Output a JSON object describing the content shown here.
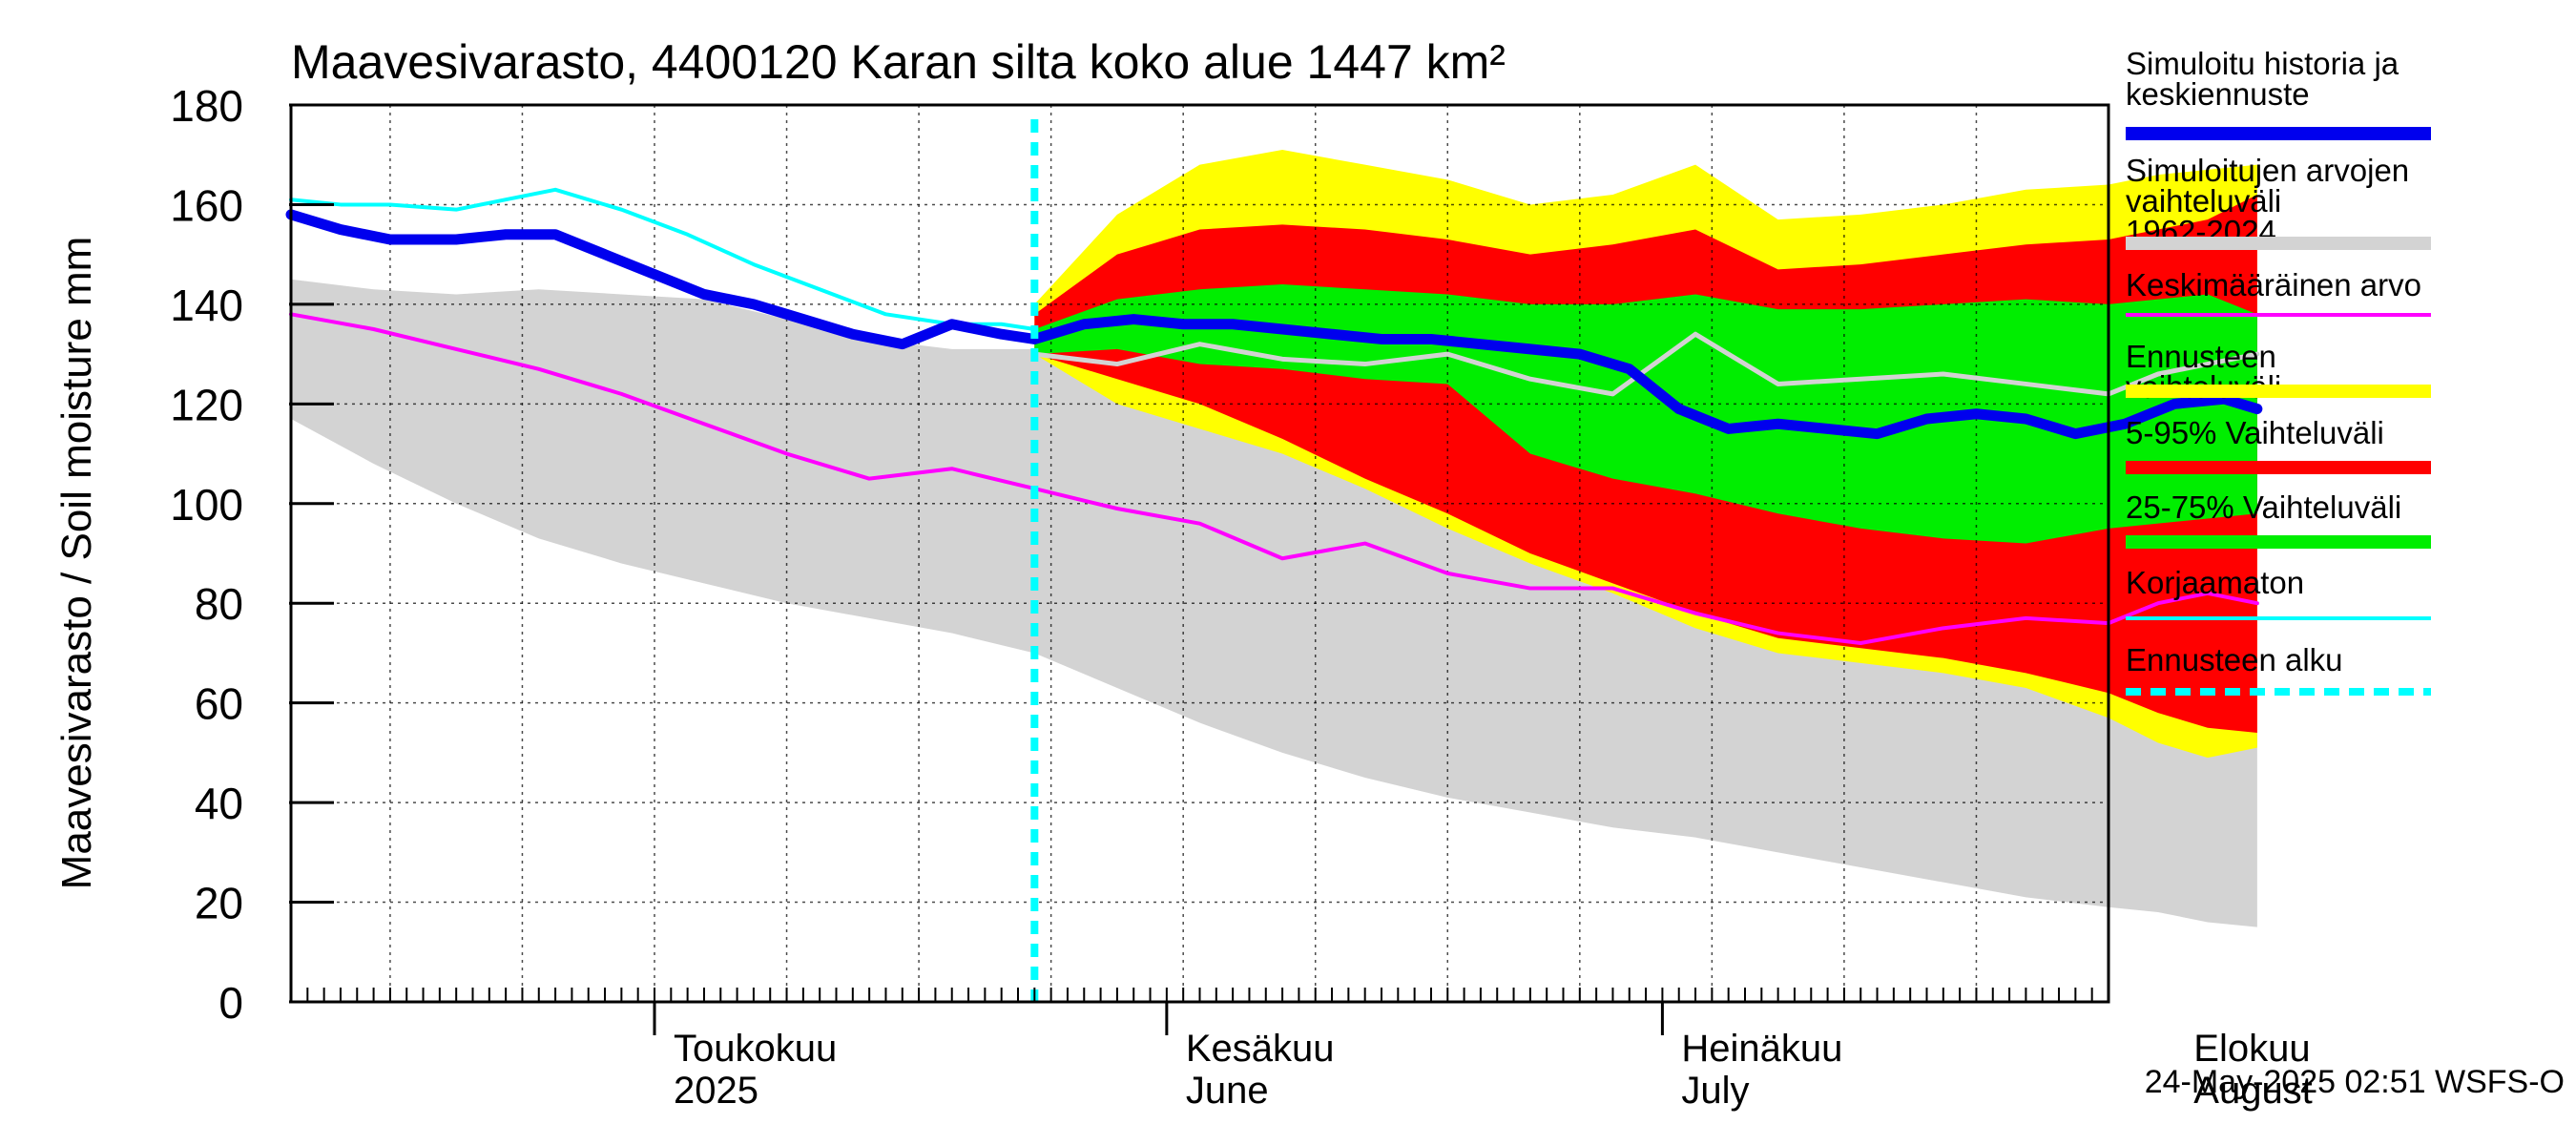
{
  "chart_data": {
    "type": "area",
    "title": "Maavesivarasto, 4400120 Karan silta koko alue 1447 km²",
    "ylabel": "Maavesivarasto / Soil moisture   mm",
    "ylim": [
      0,
      180
    ],
    "y_ticks": [
      0,
      20,
      40,
      60,
      80,
      100,
      120,
      140,
      160,
      180
    ],
    "x_range_days": [
      0,
      110
    ],
    "x_start_date": "2025-04-09",
    "month_labels": [
      {
        "line1": "Toukokuu",
        "line2": "2025",
        "day": 22
      },
      {
        "line1": "Kesäkuu",
        "line2": "June",
        "day": 53
      },
      {
        "line1": "Heinäkuu",
        "line2": "July",
        "day": 83
      },
      {
        "line1": "Elokuu",
        "line2": "August",
        "day": 114
      }
    ],
    "month_boundaries": [
      22,
      53,
      83,
      114
    ],
    "forecast_start_day": 45,
    "timestamp": "24-May-2025 02:51 WSFS-O",
    "legend": [
      {
        "label": "Simuloitu historia ja keskiennuste",
        "color": "#0000ee",
        "style": "thick"
      },
      {
        "label": "Simuloitujen arvojen vaihteluväli 1962-2024",
        "color": "#d3d3d3",
        "style": "thick"
      },
      {
        "label": "Keskimääräinen arvo",
        "color": "#ff00ff",
        "style": "thin"
      },
      {
        "label": "Ennusteen vaihteluväli",
        "color": "#ffff00",
        "style": "thick"
      },
      {
        "label": "5-95% Vaihteluväli",
        "color": "#ff0000",
        "style": "thick"
      },
      {
        "label": "25-75% Vaihteluväli",
        "color": "#00ee00",
        "style": "thick"
      },
      {
        "label": "Korjaamaton",
        "color": "#00ffff",
        "style": "thin"
      },
      {
        "label": "Ennusteen alku",
        "color": "#00ffff",
        "style": "dashed"
      }
    ],
    "series": {
      "hist_range_upper": {
        "x": [
          0,
          5,
          10,
          15,
          20,
          25,
          30,
          35,
          40,
          45,
          50,
          55,
          60,
          65,
          70,
          75,
          80,
          85,
          90,
          95,
          100,
          105,
          110,
          113,
          116,
          119
        ],
        "y": [
          145,
          143,
          142,
          143,
          142,
          141,
          137,
          133,
          131,
          131,
          132,
          128,
          125,
          130,
          128,
          127,
          129,
          131,
          129,
          125,
          123,
          123,
          124,
          125,
          124,
          121
        ]
      },
      "hist_range_lower": {
        "x": [
          0,
          5,
          10,
          15,
          20,
          25,
          30,
          35,
          40,
          45,
          50,
          55,
          60,
          65,
          70,
          75,
          80,
          85,
          90,
          95,
          100,
          105,
          110,
          113,
          116,
          119
        ],
        "y": [
          117,
          108,
          100,
          93,
          88,
          84,
          80,
          77,
          74,
          70,
          63,
          56,
          50,
          45,
          41,
          38,
          35,
          33,
          30,
          27,
          24,
          21,
          19,
          18,
          16,
          15
        ]
      },
      "yellow_upper": {
        "x": [
          45,
          50,
          55,
          60,
          65,
          70,
          75,
          80,
          85,
          90,
          95,
          100,
          105,
          110,
          113,
          116,
          119
        ],
        "y": [
          140,
          158,
          168,
          171,
          168,
          165,
          160,
          162,
          168,
          157,
          158,
          160,
          163,
          164,
          166,
          167,
          168
        ]
      },
      "yellow_lower": {
        "x": [
          45,
          50,
          55,
          60,
          65,
          70,
          75,
          80,
          85,
          90,
          95,
          100,
          105,
          110,
          113,
          116,
          119
        ],
        "y": [
          130,
          120,
          115,
          110,
          103,
          95,
          88,
          82,
          75,
          70,
          68,
          66,
          63,
          57,
          52,
          49,
          51
        ]
      },
      "red_upper": {
        "x": [
          45,
          50,
          55,
          60,
          65,
          70,
          75,
          80,
          85,
          90,
          95,
          100,
          105,
          110,
          113,
          116,
          119
        ],
        "y": [
          138,
          150,
          155,
          156,
          155,
          153,
          150,
          152,
          155,
          147,
          148,
          150,
          152,
          153,
          155,
          157,
          162
        ]
      },
      "red_lower": {
        "x": [
          45,
          50,
          55,
          60,
          65,
          70,
          75,
          80,
          85,
          90,
          95,
          100,
          105,
          110,
          113,
          116,
          119
        ],
        "y": [
          130,
          125,
          120,
          113,
          105,
          98,
          90,
          84,
          78,
          73,
          71,
          69,
          66,
          62,
          58,
          55,
          54
        ]
      },
      "green_upper": {
        "x": [
          45,
          50,
          55,
          60,
          65,
          70,
          75,
          80,
          85,
          90,
          95,
          100,
          105,
          110,
          113,
          116,
          119
        ],
        "y": [
          135,
          141,
          143,
          144,
          143,
          142,
          140,
          140,
          142,
          139,
          139,
          140,
          141,
          140,
          141,
          142,
          138
        ]
      },
      "green_lower": {
        "x": [
          45,
          50,
          55,
          60,
          65,
          70,
          75,
          80,
          85,
          90,
          95,
          100,
          105,
          110,
          113,
          116,
          119
        ],
        "y": [
          130,
          131,
          128,
          127,
          125,
          124,
          110,
          105,
          102,
          98,
          95,
          93,
          92,
          95,
          96,
          97,
          98
        ]
      },
      "mean": {
        "x": [
          0,
          5,
          10,
          15,
          20,
          25,
          30,
          35,
          40,
          45,
          50,
          55,
          60,
          65,
          70,
          75,
          80,
          85,
          90,
          95,
          100,
          105,
          110,
          113,
          116,
          119
        ],
        "y": [
          138,
          135,
          131,
          127,
          122,
          116,
          110,
          105,
          107,
          103,
          99,
          96,
          89,
          92,
          86,
          83,
          83,
          78,
          74,
          72,
          75,
          77,
          76,
          80,
          82,
          80
        ]
      },
      "uncorrected": {
        "x": [
          0,
          3,
          6,
          10,
          13,
          16,
          20,
          24,
          28,
          32,
          36,
          40,
          43,
          45
        ],
        "y": [
          161,
          160,
          160,
          159,
          161,
          163,
          159,
          154,
          148,
          143,
          138,
          136,
          136,
          135
        ]
      },
      "gray_line": {
        "x": [
          45,
          50,
          55,
          60,
          65,
          70,
          75,
          80,
          85,
          90,
          95,
          100,
          105,
          110,
          113,
          116,
          119
        ],
        "y": [
          130,
          128,
          132,
          129,
          128,
          130,
          125,
          122,
          134,
          124,
          125,
          126,
          124,
          122,
          126,
          128,
          130
        ]
      },
      "central": {
        "x": [
          0,
          3,
          6,
          10,
          13,
          16,
          19,
          22,
          25,
          28,
          31,
          34,
          37,
          40,
          43,
          45,
          48,
          51,
          54,
          57,
          60,
          63,
          66,
          69,
          72,
          75,
          78,
          81,
          84,
          87,
          90,
          93,
          96,
          99,
          102,
          105,
          108,
          111,
          114,
          117,
          119
        ],
        "y": [
          158,
          155,
          153,
          153,
          154,
          154,
          150,
          146,
          142,
          140,
          137,
          134,
          132,
          136,
          134,
          133,
          136,
          137,
          136,
          136,
          135,
          134,
          133,
          133,
          132,
          131,
          130,
          127,
          119,
          115,
          116,
          115,
          114,
          117,
          118,
          117,
          114,
          116,
          120,
          121,
          119
        ]
      }
    }
  }
}
